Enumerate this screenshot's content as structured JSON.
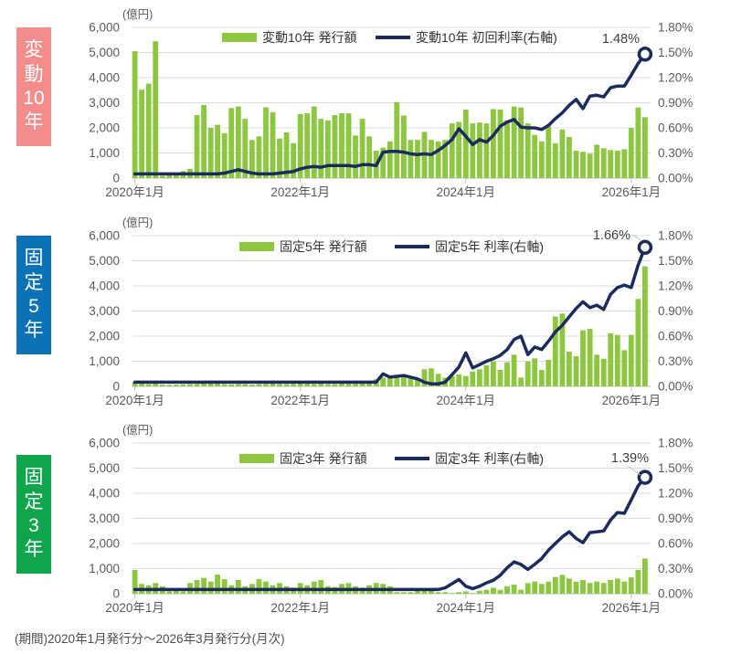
{
  "page": {
    "footer": "(期間)2020年1月発行分～2026年3月発行分(月次)"
  },
  "colors": {
    "bar_green": "#8DC63F",
    "line_navy": "#1B2B5C",
    "grid_gray": "#DCDCDC",
    "axis_gray": "#C0C0C0",
    "tick_text": "#595959",
    "legend_text": "#333333",
    "annotation_text": "#404040",
    "footer_text": "#4D4D4D",
    "category_pink": "#F58C8C",
    "category_blue": "#0C72B8",
    "category_green": "#0FA54C"
  },
  "charts": [
    {
      "category_label": "変動10年",
      "category_chars": [
        "変",
        "動",
        "10",
        "年"
      ],
      "category_color": "#F58C8C"
    },
    {
      "category_label": "固定5年",
      "category_chars": [
        "固",
        "定",
        "5",
        "年"
      ],
      "category_color": "#0C72B8"
    },
    {
      "category_label": "固定3年",
      "category_chars": [
        "固",
        "定",
        "3",
        "年"
      ],
      "category_color": "#0FA54C"
    }
  ],
  "chart_data": [
    {
      "type": "bar+line",
      "title": "変動10年",
      "unit_label": "(億円)",
      "frequency": "monthly",
      "x_start": "2020-01",
      "x_end": "2026-03",
      "x_tick_labels": [
        "2020年1月",
        "2022年1月",
        "2024年1月",
        "2026年1月"
      ],
      "x_tick_month_indices": [
        0,
        24,
        48,
        72
      ],
      "left_axis_ticks": [
        "0",
        "1,000",
        "2,000",
        "3,000",
        "4,000",
        "5,000",
        "6,000"
      ],
      "right_axis_ticks": [
        "0.00%",
        "0.30%",
        "0.60%",
        "0.90%",
        "1.20%",
        "1.50%",
        "1.80%"
      ],
      "left_ylim": [
        0,
        6000
      ],
      "right_ylim": [
        0,
        1.8
      ],
      "grid": true,
      "legend_position": "top-center",
      "end_label": "1.48%",
      "series": [
        {
          "name": "変動10年 発行額",
          "type": "bar",
          "axis": "left",
          "unit": "億円",
          "values": [
            5050,
            3520,
            3760,
            5450,
            90,
            130,
            190,
            280,
            370,
            2510,
            2910,
            2000,
            2120,
            1790,
            2790,
            2850,
            2360,
            1520,
            1660,
            2820,
            2630,
            1580,
            1820,
            1390,
            2550,
            2580,
            2850,
            2360,
            2300,
            2510,
            2580,
            2580,
            1700,
            2360,
            1660,
            1090,
            1210,
            1460,
            3030,
            2490,
            1520,
            1520,
            1840,
            1520,
            1460,
            1520,
            2180,
            2240,
            2730,
            2180,
            2210,
            2180,
            2750,
            2730,
            2300,
            2850,
            2810,
            2180,
            1720,
            1460,
            2060,
            1390,
            1940,
            1640,
            1090,
            1050,
            970,
            1330,
            1190,
            1120,
            1090,
            1150,
            2000,
            2810,
            2420
          ]
        },
        {
          "name": "変動10年 初回利率(右軸)",
          "type": "line",
          "axis": "right",
          "unit": "%",
          "values": [
            0.05,
            0.05,
            0.05,
            0.05,
            0.05,
            0.05,
            0.05,
            0.05,
            0.05,
            0.05,
            0.05,
            0.05,
            0.05,
            0.06,
            0.08,
            0.1,
            0.08,
            0.06,
            0.05,
            0.05,
            0.05,
            0.06,
            0.07,
            0.08,
            0.11,
            0.13,
            0.14,
            0.13,
            0.15,
            0.15,
            0.15,
            0.15,
            0.14,
            0.16,
            0.16,
            0.15,
            0.31,
            0.32,
            0.32,
            0.31,
            0.29,
            0.28,
            0.29,
            0.28,
            0.33,
            0.39,
            0.46,
            0.59,
            0.5,
            0.4,
            0.46,
            0.43,
            0.51,
            0.62,
            0.67,
            0.7,
            0.61,
            0.6,
            0.6,
            0.58,
            0.63,
            0.71,
            0.78,
            0.87,
            0.94,
            0.83,
            0.98,
            0.99,
            0.97,
            1.08,
            1.1,
            1.1,
            1.23,
            1.37,
            1.48
          ]
        }
      ]
    },
    {
      "type": "bar+line",
      "title": "固定5年",
      "unit_label": "(億円)",
      "frequency": "monthly",
      "x_start": "2020-01",
      "x_end": "2026-03",
      "x_tick_labels": [
        "2020年1月",
        "2022年1月",
        "2024年1月",
        "2026年1月"
      ],
      "x_tick_month_indices": [
        0,
        24,
        48,
        72
      ],
      "left_axis_ticks": [
        "0",
        "1,000",
        "2,000",
        "3,000",
        "4,000",
        "5,000",
        "6,000"
      ],
      "right_axis_ticks": [
        "0.00%",
        "0.30%",
        "0.60%",
        "0.90%",
        "1.20%",
        "1.50%",
        "1.80%"
      ],
      "left_ylim": [
        0,
        6000
      ],
      "right_ylim": [
        0,
        1.8
      ],
      "grid": true,
      "legend_position": "top-center",
      "end_label": "1.66%",
      "series": [
        {
          "name": "固定5年 発行額",
          "type": "bar",
          "axis": "left",
          "unit": "億円",
          "values": [
            170,
            110,
            90,
            195,
            70,
            60,
            70,
            80,
            90,
            100,
            110,
            170,
            170,
            90,
            80,
            100,
            90,
            70,
            90,
            100,
            220,
            100,
            90,
            90,
            140,
            110,
            90,
            110,
            90,
            90,
            110,
            140,
            110,
            140,
            190,
            280,
            350,
            390,
            350,
            390,
            350,
            330,
            680,
            715,
            500,
            350,
            410,
            480,
            410,
            590,
            680,
            840,
            990,
            655,
            960,
            1260,
            350,
            990,
            1115,
            655,
            1055,
            2780,
            2900,
            1380,
            1200,
            2230,
            2290,
            1260,
            1100,
            2110,
            2050,
            1440,
            2050,
            3480,
            4780
          ]
        },
        {
          "name": "固定5年 利率(右軸)",
          "type": "line",
          "axis": "right",
          "unit": "%",
          "values": [
            0.05,
            0.05,
            0.05,
            0.05,
            0.05,
            0.05,
            0.05,
            0.05,
            0.05,
            0.05,
            0.05,
            0.05,
            0.05,
            0.05,
            0.05,
            0.05,
            0.05,
            0.05,
            0.05,
            0.05,
            0.05,
            0.05,
            0.05,
            0.05,
            0.05,
            0.05,
            0.05,
            0.05,
            0.05,
            0.05,
            0.05,
            0.05,
            0.05,
            0.05,
            0.05,
            0.05,
            0.15,
            0.11,
            0.12,
            0.13,
            0.11,
            0.09,
            0.05,
            0.03,
            0.03,
            0.05,
            0.14,
            0.23,
            0.4,
            0.22,
            0.26,
            0.3,
            0.33,
            0.37,
            0.44,
            0.56,
            0.6,
            0.38,
            0.47,
            0.44,
            0.54,
            0.65,
            0.73,
            0.83,
            0.93,
            1.01,
            0.94,
            0.97,
            0.92,
            1.1,
            1.18,
            1.21,
            1.18,
            1.45,
            1.66
          ]
        }
      ]
    },
    {
      "type": "bar+line",
      "title": "固定3年",
      "unit_label": "(億円)",
      "frequency": "monthly",
      "x_start": "2020-01",
      "x_end": "2026-03",
      "x_tick_labels": [
        "2020年1月",
        "2022年1月",
        "2024年1月",
        "2026年1月"
      ],
      "x_tick_month_indices": [
        0,
        24,
        48,
        72
      ],
      "left_axis_ticks": [
        "0",
        "1,000",
        "2,000",
        "3,000",
        "4,000",
        "5,000",
        "6,000"
      ],
      "right_axis_ticks": [
        "0.00%",
        "0.30%",
        "0.60%",
        "0.90%",
        "1.20%",
        "1.50%",
        "1.80%"
      ],
      "left_ylim": [
        0,
        6000
      ],
      "right_ylim": [
        0,
        1.8
      ],
      "grid": true,
      "legend_position": "top-center",
      "end_label": "1.39%",
      "series": [
        {
          "name": "固定3年 発行額",
          "type": "bar",
          "axis": "left",
          "unit": "億円",
          "values": [
            950,
            390,
            340,
            425,
            300,
            100,
            145,
            100,
            425,
            545,
            630,
            485,
            765,
            580,
            340,
            545,
            300,
            390,
            580,
            485,
            340,
            425,
            300,
            240,
            425,
            340,
            485,
            545,
            300,
            265,
            390,
            425,
            300,
            240,
            340,
            425,
            390,
            300,
            60,
            60,
            60,
            150,
            180,
            150,
            60,
            60,
            25,
            60,
            95,
            25,
            120,
            155,
            240,
            155,
            300,
            360,
            155,
            420,
            485,
            390,
            485,
            665,
            750,
            605,
            485,
            545,
            425,
            485,
            425,
            545,
            605,
            485,
            650,
            950,
            1400
          ]
        },
        {
          "name": "固定3年 利率(右軸)",
          "type": "line",
          "axis": "right",
          "unit": "%",
          "values": [
            0.05,
            0.05,
            0.05,
            0.05,
            0.05,
            0.05,
            0.05,
            0.05,
            0.05,
            0.05,
            0.05,
            0.05,
            0.05,
            0.05,
            0.05,
            0.05,
            0.05,
            0.05,
            0.05,
            0.05,
            0.05,
            0.05,
            0.05,
            0.05,
            0.05,
            0.05,
            0.05,
            0.05,
            0.05,
            0.05,
            0.05,
            0.05,
            0.05,
            0.05,
            0.05,
            0.05,
            0.05,
            0.05,
            0.05,
            0.05,
            0.05,
            0.05,
            0.05,
            0.05,
            0.05,
            0.07,
            0.12,
            0.17,
            0.09,
            0.06,
            0.09,
            0.13,
            0.16,
            0.22,
            0.31,
            0.38,
            0.35,
            0.29,
            0.35,
            0.42,
            0.52,
            0.6,
            0.68,
            0.74,
            0.66,
            0.61,
            0.73,
            0.74,
            0.75,
            0.88,
            0.97,
            0.96,
            1.12,
            1.29,
            1.39
          ]
        }
      ]
    }
  ]
}
